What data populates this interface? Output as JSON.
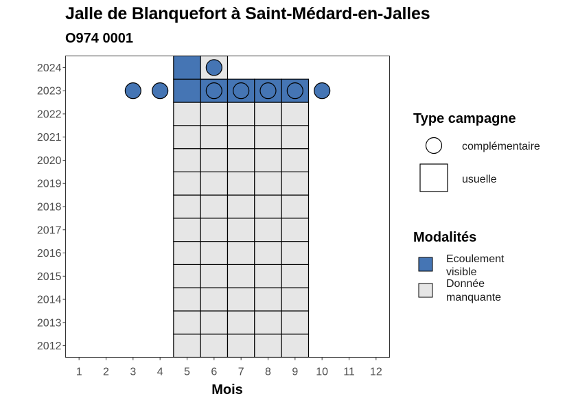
{
  "chart_data": {
    "type": "heatmap",
    "title": "Jalle de Blanquefort à Saint-Médard-en-Jalles",
    "subtitle": "O974 0001",
    "xlabel": "Mois",
    "ylabel": "",
    "x_ticks": [
      1,
      2,
      3,
      4,
      5,
      6,
      7,
      8,
      9,
      10,
      11,
      12
    ],
    "y_ticks": [
      2012,
      2013,
      2014,
      2015,
      2016,
      2017,
      2018,
      2019,
      2020,
      2021,
      2022,
      2023,
      2024
    ],
    "xlim": [
      0.5,
      12.5
    ],
    "ylim": [
      2011.5,
      2024.5
    ],
    "grid": false,
    "modalites": [
      {
        "key": "ecoulement",
        "label_lines": [
          "Ecoulement",
          "visible"
        ],
        "color": "#4575b4"
      },
      {
        "key": "manquante",
        "label_lines": [
          "Donnée",
          "manquante"
        ],
        "color": "#e6e6e6"
      }
    ],
    "type_campagne": [
      {
        "key": "complementaire",
        "label": "complémentaire",
        "shape": "circle"
      },
      {
        "key": "usuelle",
        "label": "usuelle",
        "shape": "square"
      }
    ],
    "legend_titles": {
      "type": "Type campagne",
      "modalites": "Modalités"
    },
    "legend_position": "right",
    "usuelle_cells": [
      {
        "year": 2012,
        "months": [
          5,
          6,
          7,
          8,
          9
        ],
        "modalite": "manquante"
      },
      {
        "year": 2013,
        "months": [
          5,
          6,
          7,
          8,
          9
        ],
        "modalite": "manquante"
      },
      {
        "year": 2014,
        "months": [
          5,
          6,
          7,
          8,
          9
        ],
        "modalite": "manquante"
      },
      {
        "year": 2015,
        "months": [
          5,
          6,
          7,
          8,
          9
        ],
        "modalite": "manquante"
      },
      {
        "year": 2016,
        "months": [
          5,
          6,
          7,
          8,
          9
        ],
        "modalite": "manquante"
      },
      {
        "year": 2017,
        "months": [
          5,
          6,
          7,
          8,
          9
        ],
        "modalite": "manquante"
      },
      {
        "year": 2018,
        "months": [
          5,
          6,
          7,
          8,
          9
        ],
        "modalite": "manquante"
      },
      {
        "year": 2019,
        "months": [
          5,
          6,
          7,
          8,
          9
        ],
        "modalite": "manquante"
      },
      {
        "year": 2020,
        "months": [
          5,
          6,
          7,
          8,
          9
        ],
        "modalite": "manquante"
      },
      {
        "year": 2021,
        "months": [
          5,
          6,
          7,
          8,
          9
        ],
        "modalite": "manquante"
      },
      {
        "year": 2022,
        "months": [
          5,
          6,
          7,
          8,
          9
        ],
        "modalite": "manquante"
      },
      {
        "year": 2023,
        "months": [
          5,
          6,
          7,
          8,
          9
        ],
        "modalite": "ecoulement"
      },
      {
        "year": 2024,
        "months": [
          5
        ],
        "modalite": "ecoulement"
      },
      {
        "year": 2024,
        "months": [
          6
        ],
        "modalite": "manquante"
      }
    ],
    "complementaire_points": [
      {
        "year": 2023,
        "months": [
          3,
          4,
          6,
          7,
          8,
          9,
          10
        ],
        "modalite": "ecoulement"
      },
      {
        "year": 2024,
        "months": [
          6
        ],
        "modalite": "ecoulement"
      }
    ]
  }
}
